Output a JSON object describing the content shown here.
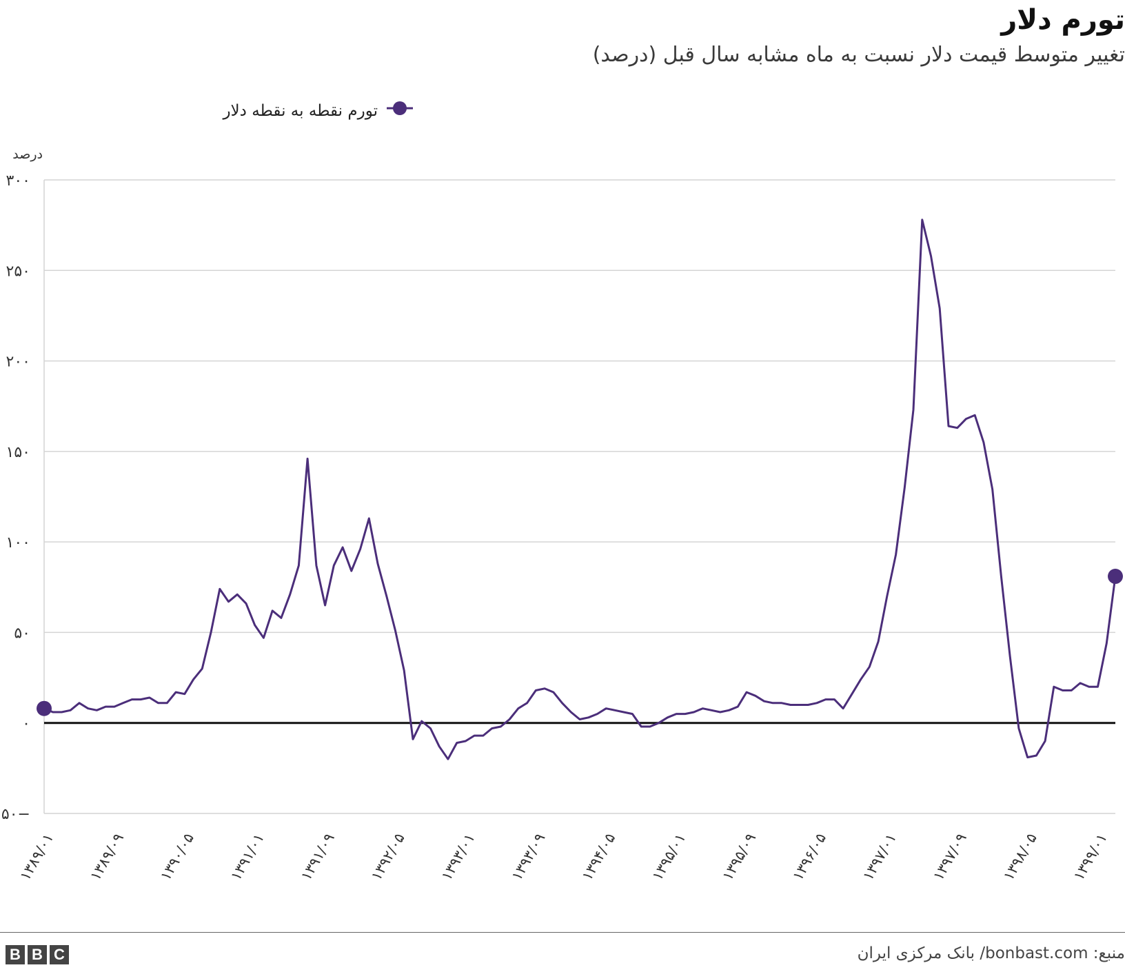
{
  "title": "تورم دلار",
  "subtitle": "تغییر متوسط قیمت دلار نسبت به ماه مشابه سال قبل (درصد)",
  "legend": {
    "series_label": "تورم نقطه به نقطه دلار"
  },
  "source": "منبع: bonbast.com/ بانک مرکزی ایران",
  "logo": {
    "letters": [
      "B",
      "B",
      "C"
    ]
  },
  "colors": {
    "series": "#4b2e7a",
    "grid": "#d4d4d4",
    "zero_line": "#111111"
  },
  "chart_data": {
    "type": "line",
    "title": "تورم دلار",
    "subtitle": "تغییر متوسط قیمت دلار نسبت به ماه مشابه سال قبل (درصد)",
    "ylabel": "درصد",
    "ylim": [
      -50,
      300
    ],
    "y_ticks": [
      300,
      250,
      200,
      150,
      100,
      50,
      0,
      -50
    ],
    "y_tick_labels": [
      "۳۰۰",
      "۲۵۰",
      "۲۰۰",
      "۱۵۰",
      "۱۰۰",
      "۵۰",
      "۰",
      "۵۰−"
    ],
    "x_tick_labels": [
      "۱۳۸۹/۰۱",
      "۱۳۸۹/۰۹",
      "۱۳۹۰/۰۵",
      "۱۳۹۱/۰۱",
      "۱۳۹۱/۰۹",
      "۱۳۹۲/۰۵",
      "۱۳۹۳/۰۱",
      "۱۳۹۳/۰۹",
      "۱۳۹۴/۰۵",
      "۱۳۹۵/۰۱",
      "۱۳۹۵/۰۹",
      "۱۳۹۶/۰۵",
      "۱۳۹۷/۰۱",
      "۱۳۹۷/۰۹",
      "۱۳۹۸/۰۵",
      "۱۳۹۹/۰۱"
    ],
    "x_tick_positions": [
      0,
      8,
      16,
      24,
      32,
      40,
      48,
      56,
      64,
      72,
      80,
      88,
      96,
      104,
      112,
      120
    ],
    "grid": true,
    "legend_position": "top-left",
    "series": [
      {
        "name": "تورم نقطه به نقطه دلار",
        "values": [
          8,
          6,
          6,
          7,
          11,
          8,
          7,
          9,
          9,
          11,
          13,
          13,
          14,
          11,
          11,
          17,
          16,
          24,
          30,
          50,
          74,
          67,
          71,
          66,
          54,
          47,
          62,
          58,
          71,
          87,
          146,
          87,
          65,
          87,
          97,
          84,
          96,
          113,
          88,
          70,
          51,
          29,
          -9,
          1,
          -3,
          -13,
          -20,
          -11,
          -10,
          -7,
          -7,
          -3,
          -2,
          2,
          8,
          11,
          18,
          19,
          17,
          11,
          6,
          2,
          3,
          5,
          8,
          7,
          6,
          5,
          -2,
          -2,
          0,
          3,
          5,
          5,
          6,
          8,
          7,
          6,
          7,
          9,
          17,
          15,
          12,
          11,
          11,
          10,
          10,
          10,
          11,
          13,
          13,
          8,
          16,
          24,
          31,
          45,
          70,
          93,
          130,
          173,
          278,
          258,
          229,
          164,
          163,
          168,
          170,
          155,
          129,
          81,
          37,
          -3,
          -19,
          -18,
          -10,
          20,
          18,
          18,
          22,
          20,
          20,
          44,
          81
        ]
      }
    ]
  }
}
